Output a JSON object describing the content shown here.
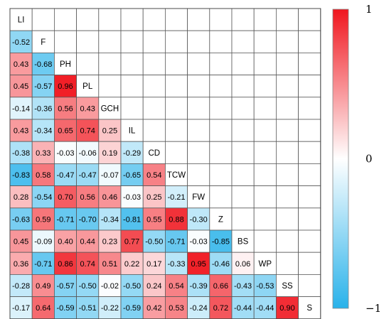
{
  "chart_data": {
    "type": "heatmap",
    "variables": [
      "LI",
      "F",
      "PH",
      "PL",
      "GCH",
      "IL",
      "CD",
      "TCW",
      "FW",
      "Z",
      "BS",
      "WP",
      "SS",
      "S"
    ],
    "lower_triangle": [
      [],
      [
        -0.52
      ],
      [
        0.43,
        -0.68
      ],
      [
        0.45,
        -0.57,
        0.96
      ],
      [
        -0.14,
        -0.36,
        0.56,
        0.43
      ],
      [
        0.43,
        -0.34,
        0.65,
        0.74,
        0.25
      ],
      [
        -0.38,
        0.33,
        -0.03,
        -0.06,
        0.19,
        -0.29
      ],
      [
        -0.83,
        0.58,
        -0.47,
        -0.47,
        -0.07,
        -0.65,
        0.54
      ],
      [
        0.28,
        -0.54,
        0.7,
        0.56,
        0.46,
        -0.03,
        0.25,
        -0.21
      ],
      [
        -0.63,
        0.59,
        -0.71,
        -0.7,
        -0.34,
        -0.81,
        0.55,
        0.88,
        -0.3
      ],
      [
        0.45,
        -0.09,
        0.4,
        0.44,
        0.23,
        0.77,
        -0.5,
        -0.71,
        -0.03,
        -0.85
      ],
      [
        0.36,
        -0.71,
        0.86,
        0.74,
        0.51,
        0.22,
        0.17,
        -0.33,
        0.95,
        -0.46,
        0.06
      ],
      [
        -0.28,
        0.49,
        -0.57,
        -0.5,
        -0.02,
        -0.5,
        0.24,
        0.54,
        -0.39,
        0.66,
        -0.43,
        -0.53
      ],
      [
        -0.17,
        0.64,
        -0.59,
        -0.51,
        -0.22,
        -0.59,
        0.42,
        0.53,
        -0.24,
        0.72,
        -0.44,
        -0.44,
        0.9
      ]
    ],
    "colorbar": {
      "min": -1,
      "mid": 0,
      "max": 1,
      "tick_labels": [
        "1",
        "0",
        "−1"
      ],
      "colors": {
        "negative": "#29B2EA",
        "zero": "#FFFFFF",
        "positive": "#F0161E"
      }
    }
  }
}
